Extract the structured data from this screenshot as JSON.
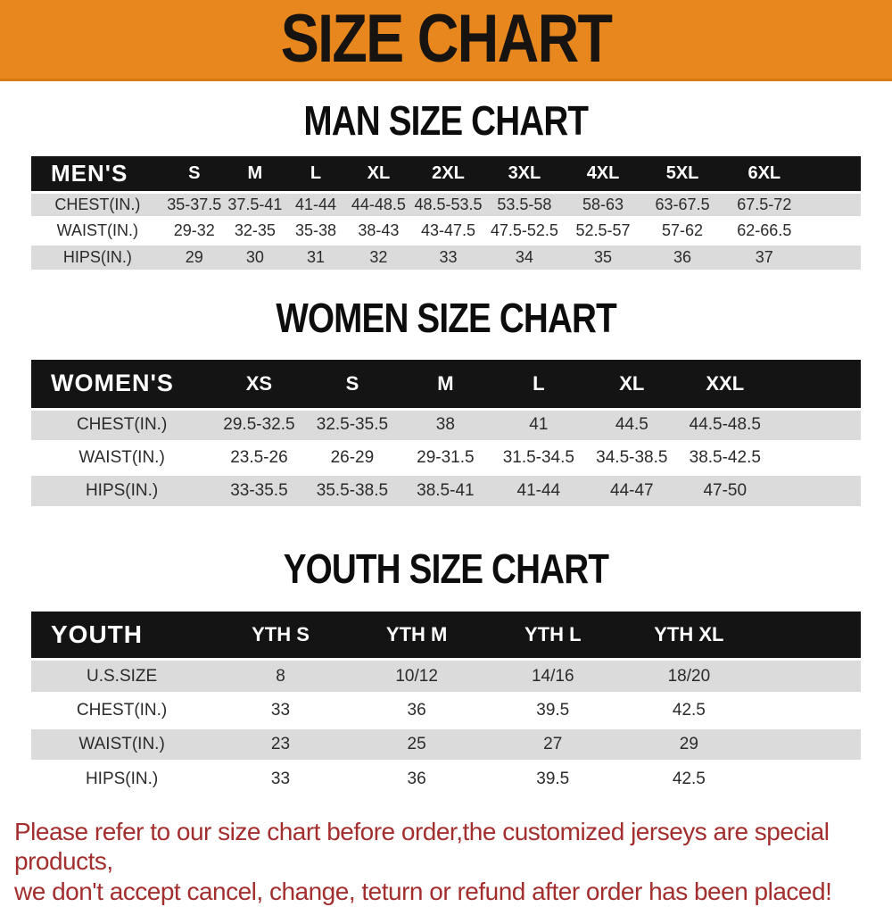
{
  "banner": {
    "title": "SIZE CHART"
  },
  "colors": {
    "banner_orange": "#E8871E",
    "table_header_black": "#141414",
    "row_gray": "#DBDBDB",
    "footer_red": "#A32E2E"
  },
  "sections": [
    {
      "title": "MAN SIZE CHART",
      "table": {
        "name": "MEN'S",
        "columns": [
          "S",
          "M",
          "L",
          "XL",
          "2XL",
          "3XL",
          "4XL",
          "5XL",
          "6XL"
        ],
        "rows": [
          {
            "label": "CHEST(IN.)",
            "values": [
              "35-37.5",
              "37.5-41",
              "41-44",
              "44-48.5",
              "48.5-53.5",
              "53.5-58",
              "58-63",
              "63-67.5",
              "67.5-72"
            ]
          },
          {
            "label": "WAIST(IN.)",
            "values": [
              "29-32",
              "32-35",
              "35-38",
              "38-43",
              "43-47.5",
              "47.5-52.5",
              "52.5-57",
              "57-62",
              "62-66.5"
            ]
          },
          {
            "label": "HIPS(IN.)",
            "values": [
              "29",
              "30",
              "31",
              "32",
              "33",
              "34",
              "35",
              "36",
              "37"
            ]
          }
        ]
      }
    },
    {
      "title": "WOMEN SIZE CHART",
      "table": {
        "name": "WOMEN'S",
        "columns": [
          "XS",
          "S",
          "M",
          "L",
          "XL",
          "XXL"
        ],
        "rows": [
          {
            "label": "CHEST(IN.)",
            "values": [
              "29.5-32.5",
              "32.5-35.5",
              "38",
              "41",
              "44.5",
              "44.5-48.5"
            ]
          },
          {
            "label": "WAIST(IN.)",
            "values": [
              "23.5-26",
              "26-29",
              "29-31.5",
              "31.5-34.5",
              "34.5-38.5",
              "38.5-42.5"
            ]
          },
          {
            "label": "HIPS(IN.)",
            "values": [
              "33-35.5",
              "35.5-38.5",
              "38.5-41",
              "41-44",
              "44-47",
              "47-50"
            ]
          }
        ]
      }
    },
    {
      "title": "YOUTH SIZE CHART",
      "table": {
        "name": "YOUTH",
        "columns": [
          "YTH S",
          "YTH M",
          "YTH L",
          "YTH XL"
        ],
        "rows": [
          {
            "label": "U.S.SIZE",
            "values": [
              "8",
              "10/12",
              "14/16",
              "18/20"
            ]
          },
          {
            "label": "CHEST(IN.)",
            "values": [
              "33",
              "36",
              "39.5",
              "42.5"
            ]
          },
          {
            "label": "WAIST(IN.)",
            "values": [
              "23",
              "25",
              "27",
              "29"
            ]
          },
          {
            "label": "HIPS(IN.)",
            "values": [
              "33",
              "36",
              "39.5",
              "42.5"
            ]
          }
        ]
      }
    }
  ],
  "footer": {
    "line1": "Please refer to our size chart before order,the customized jerseys are special products,",
    "line2": "we don't accept cancel, change, teturn or refund after order has been placed!"
  }
}
